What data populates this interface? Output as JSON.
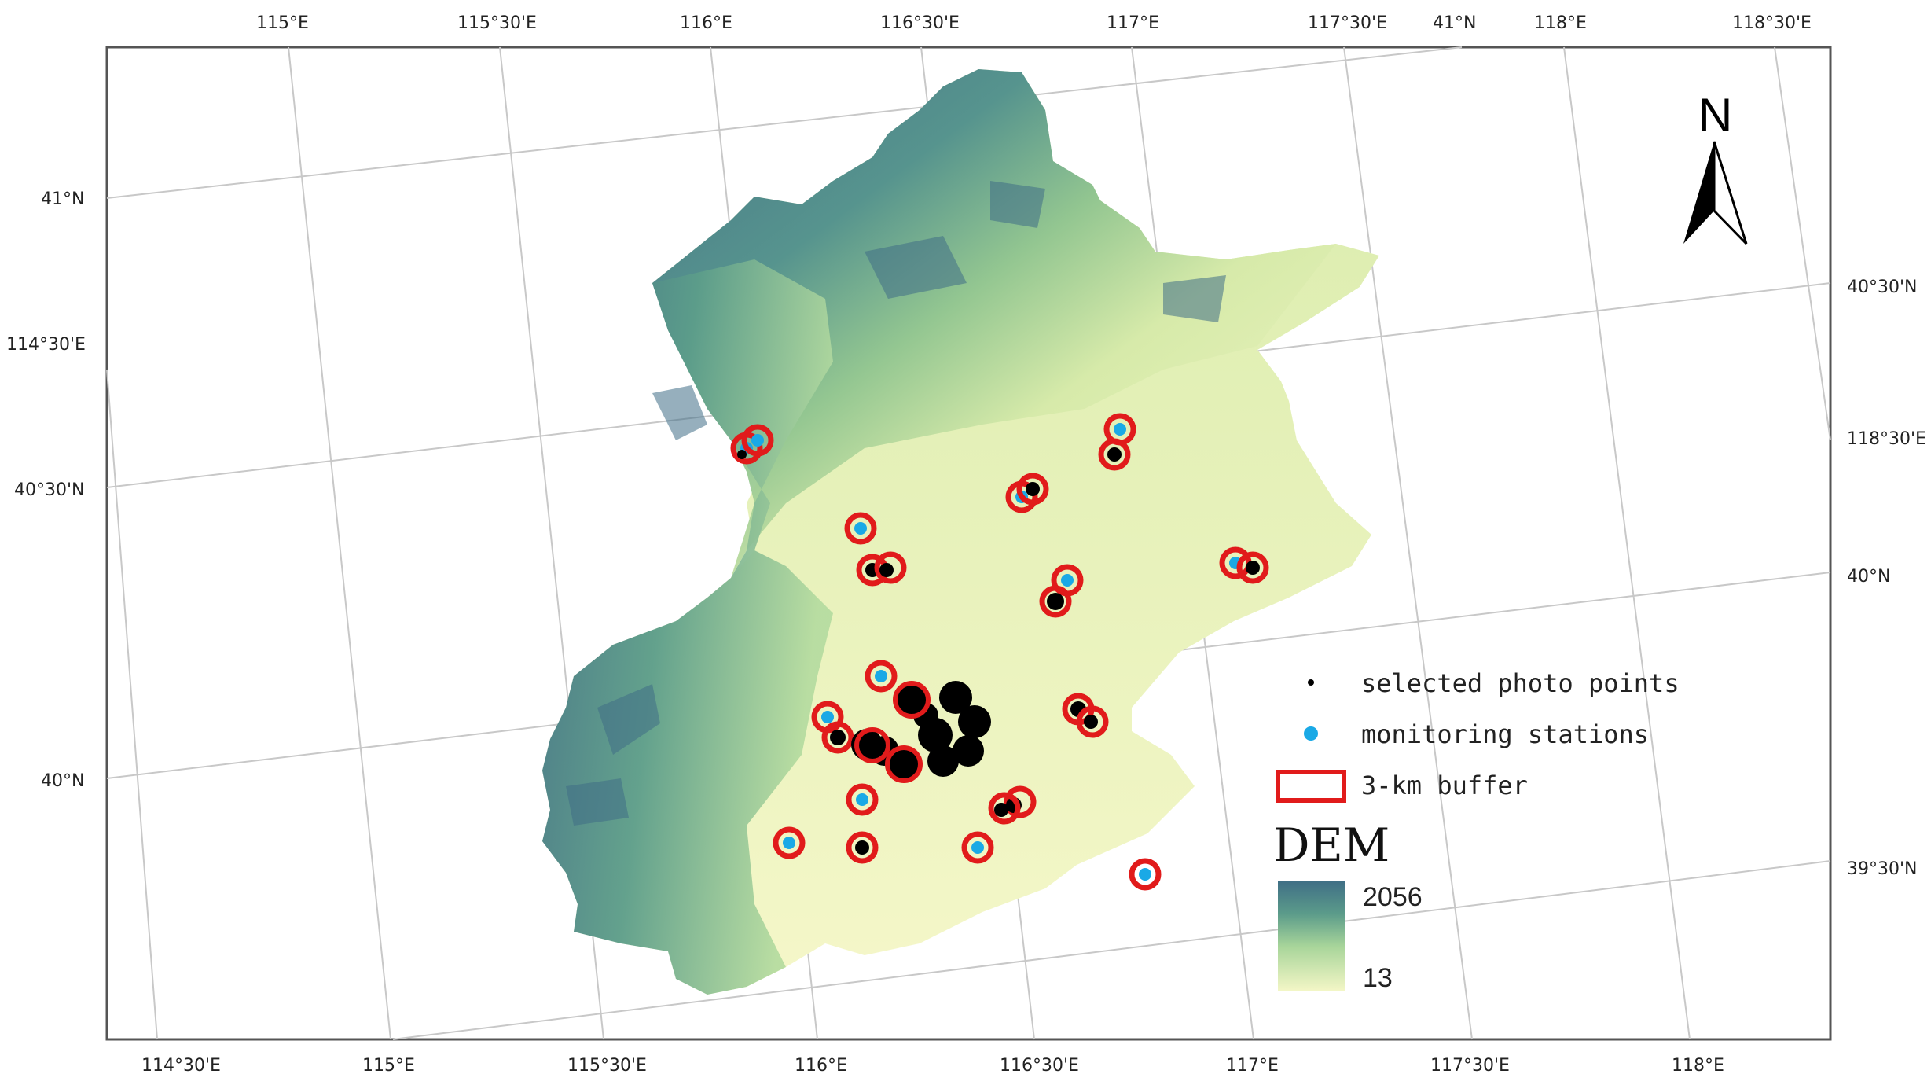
{
  "map": {
    "top_labels": [
      "115°E",
      "115°30'E",
      "116°E",
      "116°30'E",
      "117°E",
      "117°30'E",
      "41°N",
      "118°E",
      "118°30'E"
    ],
    "bottom_labels": [
      "114°30'E",
      "115°E",
      "115°30'E",
      "116°E",
      "116°30'E",
      "117°E",
      "117°30'E",
      "118°E"
    ],
    "left_labels": [
      "41°N",
      "114°30'E",
      "40°30'N",
      "40°N"
    ],
    "right_labels": [
      "40°30'N",
      "118°30'E",
      "40°N",
      "39°30'N"
    ],
    "north_arrow": {
      "letter": "N",
      "icon": "north-arrow-icon"
    },
    "legend": {
      "photo_points": "selected photo points",
      "stations": "monitoring stations",
      "buffer": "3-km buffer"
    },
    "dem": {
      "title": "DEM",
      "max": "2056",
      "min": "13",
      "colors": [
        "#3f6e86",
        "#5b9b8a",
        "#8fc48f",
        "#cfe8a8",
        "#f3f6c6"
      ]
    },
    "colors": {
      "buffer": "#e11b1b",
      "station": "#1aa9e6",
      "point": "#000000",
      "grid": "#c8c8c8"
    }
  }
}
